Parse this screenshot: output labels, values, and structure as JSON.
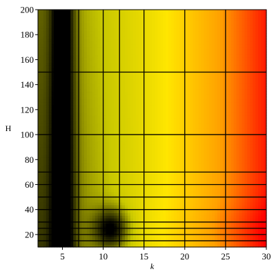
{
  "chart_data": {
    "type": "heatmap",
    "title": "",
    "xlabel": "k",
    "ylabel": "H",
    "xlim": [
      2,
      30
    ],
    "ylim": [
      10,
      200
    ],
    "x_ticks": [
      5,
      10,
      15,
      20,
      25,
      30
    ],
    "y_ticks": [
      20,
      40,
      60,
      80,
      100,
      120,
      140,
      160,
      180,
      200
    ],
    "x_grid_lines": [
      4,
      5,
      7,
      10,
      12,
      15,
      20,
      25
    ],
    "y_grid_lines": [
      15,
      20,
      25,
      30,
      40,
      50,
      60,
      70,
      100,
      150
    ],
    "grid": true,
    "colormap": [
      "#000000",
      "#5a5a00",
      "#c8c800",
      "#ffe600",
      "#ffa000",
      "#ff0000"
    ],
    "color_scale_description": "dark near k≈5 for all H and near k≈10–11, H≈15–40; increases to red at large k",
    "local_minima": [
      {
        "k": 5,
        "H": 90
      },
      {
        "k": 11,
        "H": 25
      }
    ]
  }
}
